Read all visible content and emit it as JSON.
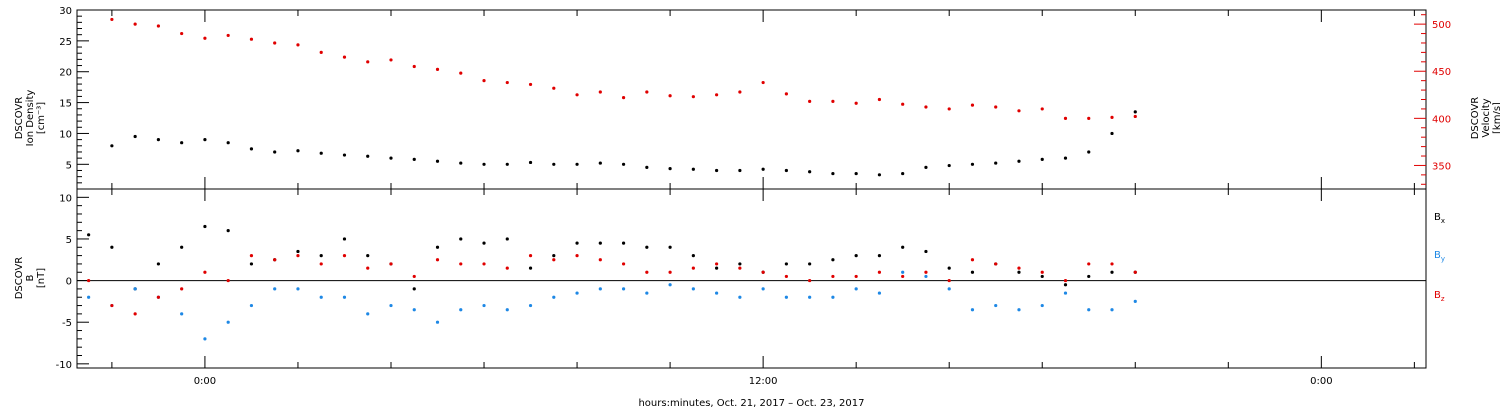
{
  "chart_data": [
    {
      "type": "scatter",
      "panel": "plasma",
      "ylabel_left": [
        "DSCOVR",
        "Ion Density",
        "[cm⁻³]"
      ],
      "ylabel_right": [
        "DSCOVR",
        "Velocity",
        "[km/s]"
      ],
      "ylim_left": [
        1,
        30
      ],
      "ylim_right": [
        325,
        515
      ],
      "yticks_left": [
        "5",
        "10",
        "15",
        "20",
        "25",
        "30"
      ],
      "yticks_left_values": [
        5,
        10,
        15,
        20,
        25,
        30
      ],
      "yticks_right": [
        "350",
        "400",
        "450",
        "500"
      ],
      "yticks_right_values": [
        350,
        400,
        450,
        500
      ],
      "series": [
        {
          "name": "Ion Density",
          "axis": "left",
          "color": "#000000",
          "x": [
            -2.0,
            -1.5,
            -1.0,
            -0.5,
            0.0,
            0.5,
            1.0,
            1.5,
            2.0,
            2.5,
            3.0,
            3.5,
            4.0,
            4.5,
            5.0,
            5.5,
            6.0,
            6.5,
            7.0,
            7.5,
            8.0,
            8.5,
            9.0,
            9.5,
            10.0,
            10.5,
            11.0,
            11.5,
            12.0,
            12.5,
            13.0,
            13.5,
            14.0,
            14.5,
            15.0,
            15.5,
            16.0,
            16.5,
            17.0,
            17.5,
            18.0,
            18.5,
            19.0,
            19.5,
            20.0
          ],
          "y": [
            8.0,
            9.5,
            9.0,
            8.5,
            9.0,
            8.5,
            7.5,
            7.0,
            7.2,
            6.8,
            6.5,
            6.3,
            6.0,
            5.8,
            5.5,
            5.2,
            5.0,
            5.0,
            5.3,
            5.0,
            5.0,
            5.2,
            5.0,
            4.5,
            4.3,
            4.2,
            4.0,
            4.0,
            4.2,
            4.0,
            3.8,
            3.5,
            3.5,
            3.3,
            3.5,
            4.5,
            4.8,
            5.0,
            5.2,
            5.5,
            5.8,
            6.0,
            7.0,
            10.0,
            13.5
          ]
        },
        {
          "name": "Velocity",
          "axis": "right",
          "color": "#e00000",
          "x": [
            -2.0,
            -1.5,
            -1.0,
            -0.5,
            0.0,
            0.5,
            1.0,
            1.5,
            2.0,
            2.5,
            3.0,
            3.5,
            4.0,
            4.5,
            5.0,
            5.5,
            6.0,
            6.5,
            7.0,
            7.5,
            8.0,
            8.5,
            9.0,
            9.5,
            10.0,
            10.5,
            11.0,
            11.5,
            12.0,
            12.5,
            13.0,
            13.5,
            14.0,
            14.5,
            15.0,
            15.5,
            16.0,
            16.5,
            17.0,
            17.5,
            18.0,
            18.5,
            19.0,
            19.5,
            20.0
          ],
          "y": [
            505,
            500,
            498,
            490,
            485,
            488,
            484,
            480,
            478,
            470,
            465,
            460,
            462,
            455,
            452,
            448,
            440,
            438,
            436,
            432,
            425,
            428,
            422,
            428,
            424,
            423,
            425,
            428,
            438,
            426,
            418,
            418,
            416,
            420,
            415,
            412,
            410,
            414,
            412,
            408,
            410,
            400,
            400,
            401,
            402
          ]
        }
      ]
    },
    {
      "type": "scatter",
      "panel": "magnetic field",
      "ylabel_left": [
        "DSCOVR",
        "B",
        "[nT]"
      ],
      "ylim": [
        -10.5,
        11
      ],
      "yticks": [
        "-10",
        "-5",
        "0",
        "5",
        "10"
      ],
      "yticks_values": [
        -10,
        -5,
        0,
        5,
        10
      ],
      "zero_line": true,
      "legend": "right",
      "series": [
        {
          "name": "Bx",
          "color": "#000000",
          "x": [
            -2.5,
            -2.0,
            -1.5,
            -1.0,
            -0.5,
            0.0,
            0.5,
            1.0,
            1.5,
            2.0,
            2.5,
            3.0,
            3.5,
            4.0,
            4.5,
            5.0,
            5.5,
            6.0,
            6.5,
            7.0,
            7.5,
            8.0,
            8.5,
            9.0,
            9.5,
            10.0,
            10.5,
            11.0,
            11.5,
            12.0,
            12.5,
            13.0,
            13.5,
            14.0,
            14.5,
            15.0,
            15.5,
            16.0,
            16.5,
            17.0,
            17.5,
            18.0,
            18.5,
            19.0,
            19.5,
            20.0
          ],
          "y": [
            5.5,
            4.0,
            -1.0,
            2.0,
            4.0,
            6.5,
            6.0,
            2.0,
            2.5,
            3.5,
            3.0,
            5.0,
            3.0,
            2.0,
            -1.0,
            4.0,
            5.0,
            4.5,
            5.0,
            1.5,
            3.0,
            4.5,
            4.5,
            4.5,
            4.0,
            4.0,
            3.0,
            1.5,
            2.0,
            1.0,
            2.0,
            2.0,
            2.5,
            3.0,
            3.0,
            4.0,
            3.5,
            1.5,
            1.0,
            2.0,
            1.0,
            0.5,
            -0.5,
            0.5,
            1.0,
            1.0
          ]
        },
        {
          "name": "By",
          "color": "#1e88e5",
          "x": [
            -2.5,
            -2.0,
            -1.5,
            -1.0,
            -0.5,
            0.0,
            0.5,
            1.0,
            1.5,
            2.0,
            2.5,
            3.0,
            3.5,
            4.0,
            4.5,
            5.0,
            5.5,
            6.0,
            6.5,
            7.0,
            7.5,
            8.0,
            8.5,
            9.0,
            9.5,
            10.0,
            10.5,
            11.0,
            11.5,
            12.0,
            12.5,
            13.0,
            13.5,
            14.0,
            14.5,
            15.0,
            15.5,
            16.0,
            16.5,
            17.0,
            17.5,
            18.0,
            18.5,
            19.0,
            19.5,
            20.0
          ],
          "y": [
            -2.0,
            -3.0,
            -1.0,
            -2.0,
            -4.0,
            -7.0,
            -5.0,
            -3.0,
            -1.0,
            -1.0,
            -2.0,
            -2.0,
            -4.0,
            -3.0,
            -3.5,
            -5.0,
            -3.5,
            -3.0,
            -3.5,
            -3.0,
            -2.0,
            -1.5,
            -1.0,
            -1.0,
            -1.5,
            -0.5,
            -1.0,
            -1.5,
            -2.0,
            -1.0,
            -2.0,
            -2.0,
            -2.0,
            -1.0,
            -1.5,
            1.0,
            0.5,
            -1.0,
            -3.5,
            -3.0,
            -3.5,
            -3.0,
            -1.5,
            -3.5,
            -3.5,
            -2.5
          ]
        },
        {
          "name": "Bz",
          "color": "#e00000",
          "x": [
            -2.5,
            -2.0,
            -1.5,
            -1.0,
            -0.5,
            0.0,
            0.5,
            1.0,
            1.5,
            2.0,
            2.5,
            3.0,
            3.5,
            4.0,
            4.5,
            5.0,
            5.5,
            6.0,
            6.5,
            7.0,
            7.5,
            8.0,
            8.5,
            9.0,
            9.5,
            10.0,
            10.5,
            11.0,
            11.5,
            12.0,
            12.5,
            13.0,
            13.5,
            14.0,
            14.5,
            15.0,
            15.5,
            16.0,
            16.5,
            17.0,
            17.5,
            18.0,
            18.5,
            19.0,
            19.5,
            20.0
          ],
          "y": [
            0.0,
            -3.0,
            -4.0,
            -2.0,
            -1.0,
            1.0,
            0.0,
            3.0,
            2.5,
            3.0,
            2.0,
            3.0,
            1.5,
            2.0,
            0.5,
            2.5,
            2.0,
            2.0,
            1.5,
            3.0,
            2.5,
            3.0,
            2.5,
            2.0,
            1.0,
            1.0,
            1.5,
            2.0,
            1.5,
            1.0,
            0.5,
            0.0,
            0.5,
            0.5,
            1.0,
            0.5,
            1.0,
            0.0,
            2.5,
            2.0,
            1.5,
            1.0,
            0.0,
            2.0,
            2.0,
            1.0
          ]
        }
      ]
    }
  ],
  "x_axis": {
    "xlim": [
      -2.75,
      26.25
    ],
    "tick_labels": [
      "0:00",
      "12:00",
      "0:00"
    ],
    "tick_values": [
      0,
      12,
      24
    ],
    "minor_step_hours": 2,
    "xlabel": "hours:minutes, Oct. 21, 2017 – Oct. 23, 2017"
  }
}
